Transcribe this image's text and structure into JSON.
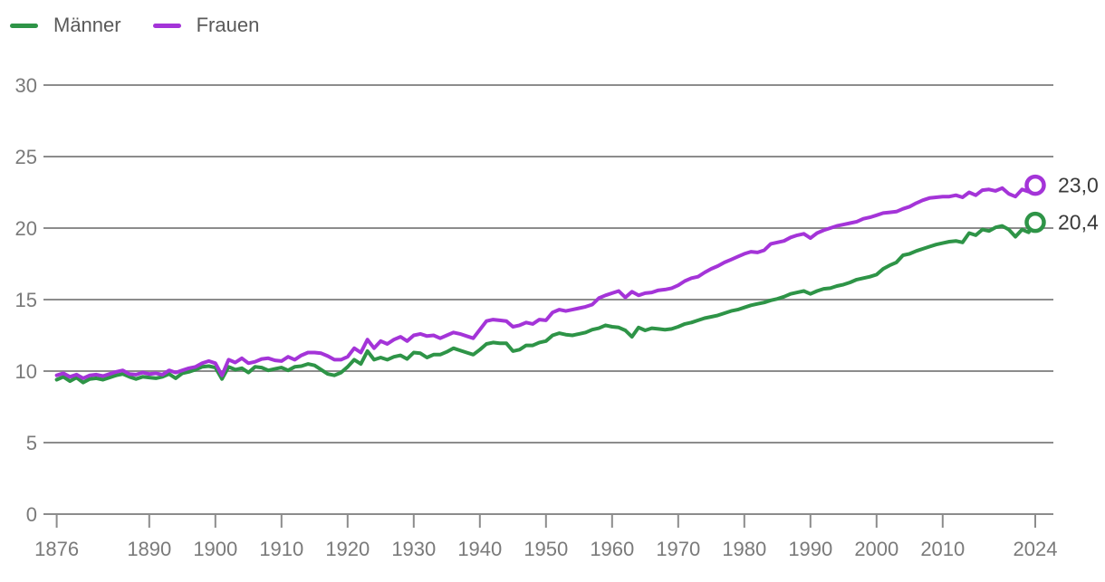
{
  "legend": {
    "items": [
      {
        "id": "maenner",
        "label": "Männer",
        "color": "#2e9447"
      },
      {
        "id": "frauen",
        "label": "Frauen",
        "color": "#a434d8"
      }
    ]
  },
  "styles": {
    "grid_color": "#8c8c8c",
    "tick_label_color": "#7a7a7a",
    "end_label_color": "#3a3a3a",
    "background": "#ffffff"
  },
  "chart_data": {
    "type": "line",
    "title": "",
    "xlabel": "",
    "ylabel": "",
    "grid": true,
    "legend_position": "top-left",
    "marker_last_point": "open-circle",
    "ylim": [
      0,
      30
    ],
    "yticks": [
      0,
      5,
      10,
      15,
      20,
      25,
      30
    ],
    "xticks": [
      1876,
      1890,
      1900,
      1910,
      1920,
      1930,
      1940,
      1950,
      1960,
      1970,
      1980,
      1990,
      2000,
      2010,
      2024
    ],
    "x": [
      1876,
      1877,
      1878,
      1879,
      1880,
      1881,
      1882,
      1883,
      1884,
      1885,
      1886,
      1887,
      1888,
      1889,
      1890,
      1891,
      1892,
      1893,
      1894,
      1895,
      1896,
      1897,
      1898,
      1899,
      1900,
      1901,
      1902,
      1903,
      1904,
      1905,
      1906,
      1907,
      1908,
      1909,
      1910,
      1911,
      1912,
      1913,
      1914,
      1915,
      1916,
      1917,
      1918,
      1919,
      1920,
      1921,
      1922,
      1923,
      1924,
      1925,
      1926,
      1927,
      1928,
      1929,
      1930,
      1931,
      1932,
      1933,
      1934,
      1935,
      1936,
      1937,
      1938,
      1939,
      1940,
      1941,
      1942,
      1943,
      1944,
      1945,
      1946,
      1947,
      1948,
      1949,
      1950,
      1951,
      1952,
      1953,
      1954,
      1955,
      1956,
      1957,
      1958,
      1959,
      1960,
      1961,
      1962,
      1963,
      1964,
      1965,
      1966,
      1967,
      1968,
      1969,
      1970,
      1971,
      1972,
      1973,
      1974,
      1975,
      1976,
      1977,
      1978,
      1979,
      1980,
      1981,
      1982,
      1983,
      1984,
      1985,
      1986,
      1987,
      1988,
      1989,
      1990,
      1991,
      1992,
      1993,
      1994,
      1995,
      1996,
      1997,
      1998,
      1999,
      2000,
      2001,
      2002,
      2003,
      2004,
      2005,
      2006,
      2007,
      2008,
      2009,
      2010,
      2011,
      2012,
      2013,
      2014,
      2015,
      2016,
      2017,
      2018,
      2019,
      2020,
      2021,
      2022,
      2023,
      2024
    ],
    "series": [
      {
        "name": "Männer",
        "color": "#2e9447",
        "end_value_label": "20,4",
        "values": [
          9.4,
          9.6,
          9.3,
          9.55,
          9.2,
          9.45,
          9.5,
          9.4,
          9.55,
          9.7,
          9.8,
          9.6,
          9.45,
          9.6,
          9.55,
          9.5,
          9.6,
          9.8,
          9.5,
          9.85,
          9.95,
          10.1,
          10.3,
          10.35,
          10.25,
          9.45,
          10.3,
          10.1,
          10.2,
          9.9,
          10.3,
          10.25,
          10.05,
          10.15,
          10.25,
          10.05,
          10.3,
          10.35,
          10.5,
          10.4,
          10.1,
          9.8,
          9.7,
          9.9,
          10.3,
          10.8,
          10.5,
          11.4,
          10.8,
          10.95,
          10.8,
          11.0,
          11.1,
          10.85,
          11.3,
          11.25,
          10.95,
          11.15,
          11.15,
          11.35,
          11.6,
          11.45,
          11.3,
          11.15,
          11.5,
          11.9,
          12.0,
          11.95,
          11.95,
          11.4,
          11.5,
          11.8,
          11.8,
          12.0,
          12.1,
          12.5,
          12.65,
          12.55,
          12.5,
          12.6,
          12.7,
          12.9,
          13.0,
          13.2,
          13.1,
          13.05,
          12.85,
          12.4,
          13.05,
          12.85,
          13.0,
          12.95,
          12.9,
          12.95,
          13.1,
          13.3,
          13.4,
          13.55,
          13.7,
          13.8,
          13.9,
          14.05,
          14.2,
          14.3,
          14.45,
          14.6,
          14.7,
          14.8,
          14.95,
          15.05,
          15.2,
          15.4,
          15.5,
          15.6,
          15.4,
          15.6,
          15.75,
          15.8,
          15.95,
          16.05,
          16.2,
          16.4,
          16.5,
          16.6,
          16.75,
          17.15,
          17.4,
          17.6,
          18.1,
          18.2,
          18.4,
          18.55,
          18.7,
          18.85,
          18.95,
          19.05,
          19.1,
          19.0,
          19.65,
          19.5,
          19.9,
          19.8,
          20.05,
          20.15,
          19.9,
          19.4,
          19.9,
          19.7,
          20.4
        ]
      },
      {
        "name": "Frauen",
        "color": "#a434d8",
        "end_value_label": "23,0",
        "values": [
          9.7,
          9.85,
          9.6,
          9.75,
          9.5,
          9.7,
          9.75,
          9.65,
          9.8,
          9.95,
          10.05,
          9.8,
          9.75,
          9.9,
          9.8,
          9.85,
          9.75,
          10.05,
          9.9,
          10.05,
          10.2,
          10.3,
          10.55,
          10.7,
          10.55,
          9.7,
          10.8,
          10.6,
          10.9,
          10.55,
          10.65,
          10.85,
          10.9,
          10.75,
          10.7,
          11.0,
          10.8,
          11.1,
          11.3,
          11.3,
          11.25,
          11.05,
          10.8,
          10.8,
          11.0,
          11.6,
          11.3,
          12.2,
          11.6,
          12.1,
          11.9,
          12.2,
          12.4,
          12.1,
          12.5,
          12.6,
          12.45,
          12.5,
          12.3,
          12.5,
          12.7,
          12.6,
          12.45,
          12.3,
          12.9,
          13.5,
          13.6,
          13.55,
          13.5,
          13.1,
          13.2,
          13.4,
          13.3,
          13.6,
          13.55,
          14.1,
          14.3,
          14.2,
          14.3,
          14.4,
          14.5,
          14.65,
          15.1,
          15.3,
          15.45,
          15.6,
          15.15,
          15.55,
          15.3,
          15.45,
          15.5,
          15.65,
          15.7,
          15.8,
          16.0,
          16.3,
          16.5,
          16.6,
          16.9,
          17.15,
          17.35,
          17.6,
          17.8,
          18.0,
          18.2,
          18.35,
          18.3,
          18.45,
          18.9,
          19.0,
          19.1,
          19.35,
          19.5,
          19.6,
          19.3,
          19.65,
          19.85,
          20.0,
          20.15,
          20.25,
          20.35,
          20.45,
          20.65,
          20.75,
          20.9,
          21.05,
          21.1,
          21.15,
          21.35,
          21.5,
          21.75,
          21.95,
          22.1,
          22.15,
          22.2,
          22.2,
          22.3,
          22.15,
          22.5,
          22.3,
          22.65,
          22.7,
          22.6,
          22.8,
          22.4,
          22.2,
          22.7,
          22.55,
          23.0
        ]
      }
    ]
  }
}
